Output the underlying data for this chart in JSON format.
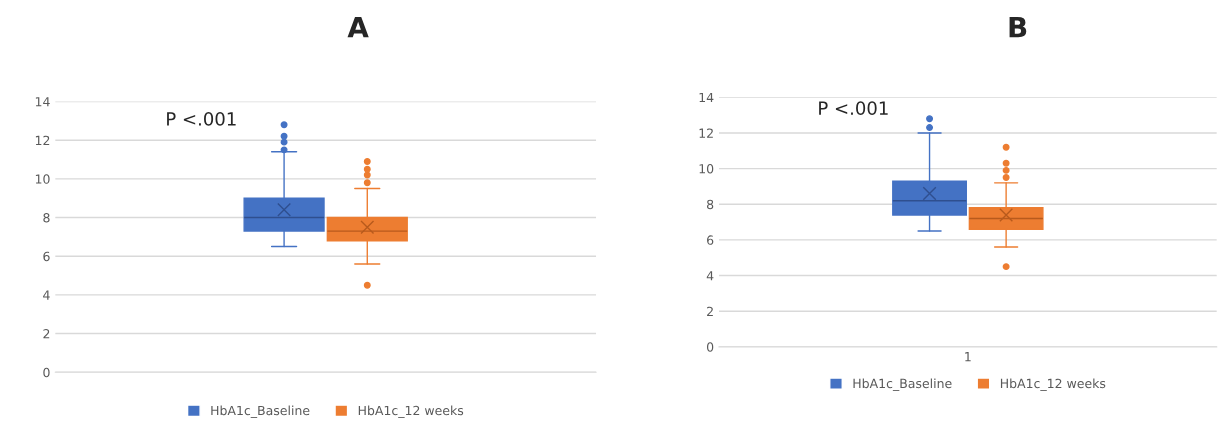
{
  "chart_data": [
    {
      "type": "box",
      "title": "A",
      "categories": [
        null
      ],
      "ylim": [
        0,
        14
      ],
      "yticks": [
        0,
        2,
        4,
        6,
        8,
        10,
        12,
        14
      ],
      "grid": "y",
      "legend": "bottom",
      "annotations": [
        "P <.001"
      ],
      "series": [
        {
          "name": "HbA1c_Baseline",
          "color": "#4472c4",
          "boxes": [
            {
              "low": 6.5,
              "q1": 7.3,
              "median": 8.0,
              "q3": 9.0,
              "high": 11.4,
              "mean": 8.4,
              "outliers": [
                11.5,
                11.9,
                12.2,
                12.8
              ]
            }
          ]
        },
        {
          "name": "HbA1c_12 weeks",
          "color": "#ed7d31",
          "boxes": [
            {
              "low": 5.6,
              "q1": 6.8,
              "median": 7.3,
              "q3": 8.0,
              "high": 9.5,
              "mean": 7.5,
              "outliers": [
                4.5,
                9.8,
                10.2,
                10.5,
                10.9
              ]
            }
          ]
        }
      ]
    },
    {
      "type": "box",
      "title": "B",
      "categories": [
        "1"
      ],
      "ylim": [
        0,
        14
      ],
      "yticks": [
        0,
        2,
        4,
        6,
        8,
        10,
        12,
        14
      ],
      "grid": "y",
      "legend": "bottom",
      "annotations": [
        "P <.001"
      ],
      "series": [
        {
          "name": "HbA1c_Baseline",
          "color": "#4472c4",
          "boxes": [
            {
              "low": 6.5,
              "q1": 7.4,
              "median": 8.2,
              "q3": 9.3,
              "high": 12.0,
              "mean": 8.6,
              "outliers": [
                12.3,
                12.8
              ]
            }
          ]
        },
        {
          "name": "HbA1c_12 weeks",
          "color": "#ed7d31",
          "boxes": [
            {
              "low": 5.6,
              "q1": 6.6,
              "median": 7.2,
              "q3": 7.8,
              "high": 9.2,
              "mean": 7.4,
              "outliers": [
                4.5,
                9.5,
                9.9,
                10.3,
                11.2
              ]
            }
          ]
        }
      ]
    }
  ]
}
